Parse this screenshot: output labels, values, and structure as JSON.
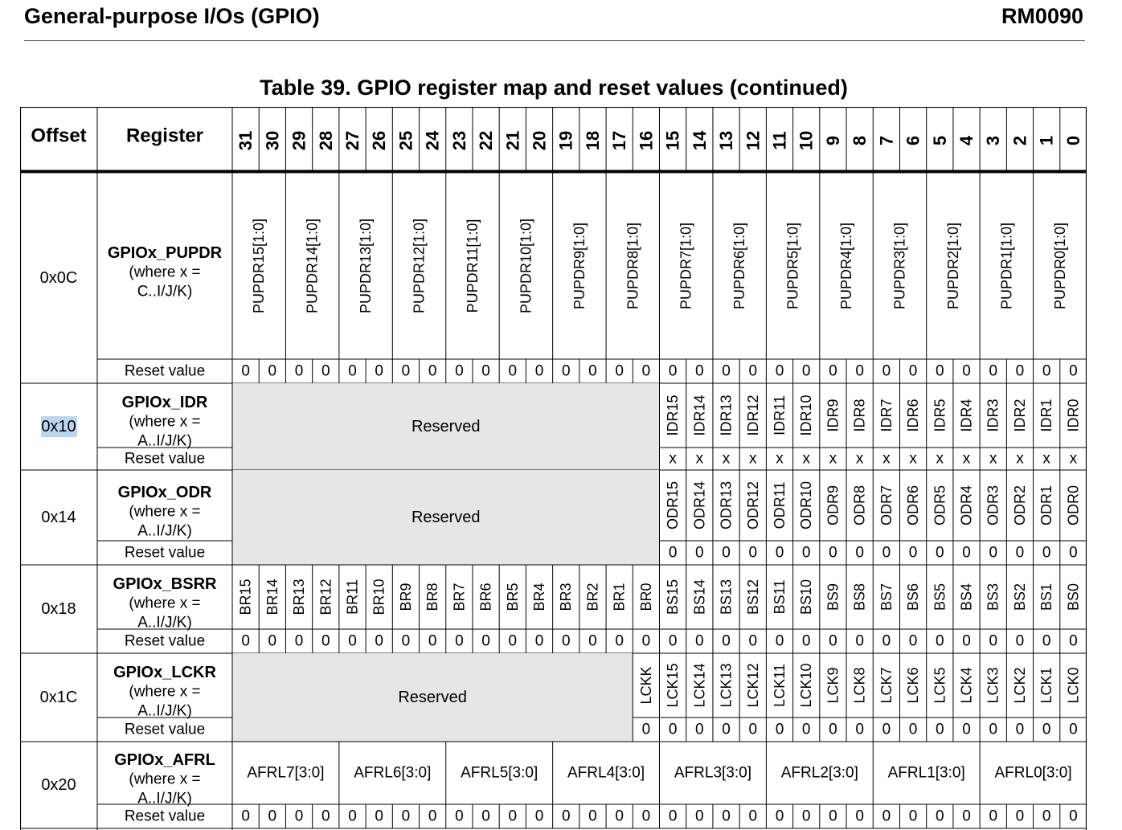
{
  "header": {
    "section_title": "General-purpose I/Os (GPIO)",
    "doc_id": "RM0090"
  },
  "caption": "Table 39. GPIO register map and reset values (continued)",
  "table": {
    "col_offset": "Offset",
    "col_register": "Register",
    "bit_numbers": [
      "31",
      "30",
      "29",
      "28",
      "27",
      "26",
      "25",
      "24",
      "23",
      "22",
      "21",
      "20",
      "19",
      "18",
      "17",
      "16",
      "15",
      "14",
      "13",
      "12",
      "11",
      "10",
      "9",
      "8",
      "7",
      "6",
      "5",
      "4",
      "3",
      "2",
      "1",
      "0"
    ],
    "reset_label": "Reset value",
    "reserved_label": "Reserved",
    "rows": [
      {
        "offset": "0x0C",
        "offset_selected": false,
        "reg_name": "GPIOx_PUPDR",
        "reg_where": [
          "(where x =",
          "C..I/J/K)"
        ],
        "fields": [
          {
            "label": "PUPDR15[1:0]",
            "width": 2,
            "vertical": true
          },
          {
            "label": "PUPDR14[1:0]",
            "width": 2,
            "vertical": true
          },
          {
            "label": "PUPDR13[1:0]",
            "width": 2,
            "vertical": true
          },
          {
            "label": "PUPDR12[1:0]",
            "width": 2,
            "vertical": true
          },
          {
            "label": "PUPDR11[1:0]",
            "width": 2,
            "vertical": true
          },
          {
            "label": "PUPDR10[1:0]",
            "width": 2,
            "vertical": true
          },
          {
            "label": "PUPDR9[1:0]",
            "width": 2,
            "vertical": true
          },
          {
            "label": "PUPDR8[1:0]",
            "width": 2,
            "vertical": true
          },
          {
            "label": "PUPDR7[1:0]",
            "width": 2,
            "vertical": true
          },
          {
            "label": "PUPDR6[1:0]",
            "width": 2,
            "vertical": true
          },
          {
            "label": "PUPDR5[1:0]",
            "width": 2,
            "vertical": true
          },
          {
            "label": "PUPDR4[1:0]",
            "width": 2,
            "vertical": true
          },
          {
            "label": "PUPDR3[1:0]",
            "width": 2,
            "vertical": true
          },
          {
            "label": "PUPDR2[1:0]",
            "width": 2,
            "vertical": true
          },
          {
            "label": "PUPDR1[1:0]",
            "width": 2,
            "vertical": true
          },
          {
            "label": "PUPDR0[1:0]",
            "width": 2,
            "vertical": true
          }
        ],
        "reset": [
          "0",
          "0",
          "0",
          "0",
          "0",
          "0",
          "0",
          "0",
          "0",
          "0",
          "0",
          "0",
          "0",
          "0",
          "0",
          "0",
          "0",
          "0",
          "0",
          "0",
          "0",
          "0",
          "0",
          "0",
          "0",
          "0",
          "0",
          "0",
          "0",
          "0",
          "0",
          "0"
        ]
      },
      {
        "offset": "0x10",
        "offset_selected": true,
        "reg_name": "GPIOx_IDR",
        "reg_where": [
          "(where x =",
          "A..I/J/K)"
        ],
        "fields": [
          {
            "label": "Reserved",
            "width": 16,
            "reserved": true
          },
          {
            "label": "IDR15",
            "width": 1,
            "vertical": true
          },
          {
            "label": "IDR14",
            "width": 1,
            "vertical": true
          },
          {
            "label": "IDR13",
            "width": 1,
            "vertical": true
          },
          {
            "label": "IDR12",
            "width": 1,
            "vertical": true
          },
          {
            "label": "IDR11",
            "width": 1,
            "vertical": true
          },
          {
            "label": "IDR10",
            "width": 1,
            "vertical": true
          },
          {
            "label": "IDR9",
            "width": 1,
            "vertical": true
          },
          {
            "label": "IDR8",
            "width": 1,
            "vertical": true
          },
          {
            "label": "IDR7",
            "width": 1,
            "vertical": true
          },
          {
            "label": "IDR6",
            "width": 1,
            "vertical": true
          },
          {
            "label": "IDR5",
            "width": 1,
            "vertical": true
          },
          {
            "label": "IDR4",
            "width": 1,
            "vertical": true
          },
          {
            "label": "IDR3",
            "width": 1,
            "vertical": true
          },
          {
            "label": "IDR2",
            "width": 1,
            "vertical": true
          },
          {
            "label": "IDR1",
            "width": 1,
            "vertical": true
          },
          {
            "label": "IDR0",
            "width": 1,
            "vertical": true
          }
        ],
        "reset": [
          "",
          "",
          "",
          "",
          "",
          "",
          "",
          "",
          "",
          "",
          "",
          "",
          "",
          "",
          "",
          "",
          "x",
          "x",
          "x",
          "x",
          "x",
          "x",
          "x",
          "x",
          "x",
          "x",
          "x",
          "x",
          "x",
          "x",
          "x",
          "x"
        ]
      },
      {
        "offset": "0x14",
        "offset_selected": false,
        "reg_name": "GPIOx_ODR",
        "reg_where": [
          "(where x =",
          "A..I/J/K)"
        ],
        "fields": [
          {
            "label": "Reserved",
            "width": 16,
            "reserved": true
          },
          {
            "label": "ODR15",
            "width": 1,
            "vertical": true
          },
          {
            "label": "ODR14",
            "width": 1,
            "vertical": true
          },
          {
            "label": "ODR13",
            "width": 1,
            "vertical": true
          },
          {
            "label": "ODR12",
            "width": 1,
            "vertical": true
          },
          {
            "label": "ODR11",
            "width": 1,
            "vertical": true
          },
          {
            "label": "ODR10",
            "width": 1,
            "vertical": true
          },
          {
            "label": "ODR9",
            "width": 1,
            "vertical": true
          },
          {
            "label": "ODR8",
            "width": 1,
            "vertical": true
          },
          {
            "label": "ODR7",
            "width": 1,
            "vertical": true
          },
          {
            "label": "ODR6",
            "width": 1,
            "vertical": true
          },
          {
            "label": "ODR5",
            "width": 1,
            "vertical": true
          },
          {
            "label": "ODR4",
            "width": 1,
            "vertical": true
          },
          {
            "label": "ODR3",
            "width": 1,
            "vertical": true
          },
          {
            "label": "ODR2",
            "width": 1,
            "vertical": true
          },
          {
            "label": "ODR1",
            "width": 1,
            "vertical": true
          },
          {
            "label": "ODR0",
            "width": 1,
            "vertical": true
          }
        ],
        "reset": [
          "",
          "",
          "",
          "",
          "",
          "",
          "",
          "",
          "",
          "",
          "",
          "",
          "",
          "",
          "",
          "",
          "0",
          "0",
          "0",
          "0",
          "0",
          "0",
          "0",
          "0",
          "0",
          "0",
          "0",
          "0",
          "0",
          "0",
          "0",
          "0"
        ]
      },
      {
        "offset": "0x18",
        "offset_selected": false,
        "reg_name": "GPIOx_BSRR",
        "reg_where": [
          "(where x =",
          "A..I/J/K)"
        ],
        "fields": [
          {
            "label": "BR15",
            "width": 1,
            "vertical": true
          },
          {
            "label": "BR14",
            "width": 1,
            "vertical": true
          },
          {
            "label": "BR13",
            "width": 1,
            "vertical": true
          },
          {
            "label": "BR12",
            "width": 1,
            "vertical": true
          },
          {
            "label": "BR11",
            "width": 1,
            "vertical": true
          },
          {
            "label": "BR10",
            "width": 1,
            "vertical": true
          },
          {
            "label": "BR9",
            "width": 1,
            "vertical": true
          },
          {
            "label": "BR8",
            "width": 1,
            "vertical": true
          },
          {
            "label": "BR7",
            "width": 1,
            "vertical": true
          },
          {
            "label": "BR6",
            "width": 1,
            "vertical": true
          },
          {
            "label": "BR5",
            "width": 1,
            "vertical": true
          },
          {
            "label": "BR4",
            "width": 1,
            "vertical": true
          },
          {
            "label": "BR3",
            "width": 1,
            "vertical": true
          },
          {
            "label": "BR2",
            "width": 1,
            "vertical": true
          },
          {
            "label": "BR1",
            "width": 1,
            "vertical": true
          },
          {
            "label": "BR0",
            "width": 1,
            "vertical": true
          },
          {
            "label": "BS15",
            "width": 1,
            "vertical": true
          },
          {
            "label": "BS14",
            "width": 1,
            "vertical": true
          },
          {
            "label": "BS13",
            "width": 1,
            "vertical": true
          },
          {
            "label": "BS12",
            "width": 1,
            "vertical": true
          },
          {
            "label": "BS11",
            "width": 1,
            "vertical": true
          },
          {
            "label": "BS10",
            "width": 1,
            "vertical": true
          },
          {
            "label": "BS9",
            "width": 1,
            "vertical": true
          },
          {
            "label": "BS8",
            "width": 1,
            "vertical": true
          },
          {
            "label": "BS7",
            "width": 1,
            "vertical": true
          },
          {
            "label": "BS6",
            "width": 1,
            "vertical": true
          },
          {
            "label": "BS5",
            "width": 1,
            "vertical": true
          },
          {
            "label": "BS4",
            "width": 1,
            "vertical": true
          },
          {
            "label": "BS3",
            "width": 1,
            "vertical": true
          },
          {
            "label": "BS2",
            "width": 1,
            "vertical": true
          },
          {
            "label": "BS1",
            "width": 1,
            "vertical": true
          },
          {
            "label": "BS0",
            "width": 1,
            "vertical": true
          }
        ],
        "reset": [
          "0",
          "0",
          "0",
          "0",
          "0",
          "0",
          "0",
          "0",
          "0",
          "0",
          "0",
          "0",
          "0",
          "0",
          "0",
          "0",
          "0",
          "0",
          "0",
          "0",
          "0",
          "0",
          "0",
          "0",
          "0",
          "0",
          "0",
          "0",
          "0",
          "0",
          "0",
          "0"
        ]
      },
      {
        "offset": "0x1C",
        "offset_selected": false,
        "reg_name": "GPIOx_LCKR",
        "reg_where": [
          "(where x =",
          "A..I/J/K)"
        ],
        "fields": [
          {
            "label": "Reserved",
            "width": 15,
            "reserved": true
          },
          {
            "label": "LCKK",
            "width": 1,
            "vertical": true
          },
          {
            "label": "LCK15",
            "width": 1,
            "vertical": true
          },
          {
            "label": "LCK14",
            "width": 1,
            "vertical": true
          },
          {
            "label": "LCK13",
            "width": 1,
            "vertical": true
          },
          {
            "label": "LCK12",
            "width": 1,
            "vertical": true
          },
          {
            "label": "LCK11",
            "width": 1,
            "vertical": true
          },
          {
            "label": "LCK10",
            "width": 1,
            "vertical": true
          },
          {
            "label": "LCK9",
            "width": 1,
            "vertical": true
          },
          {
            "label": "LCK8",
            "width": 1,
            "vertical": true
          },
          {
            "label": "LCK7",
            "width": 1,
            "vertical": true
          },
          {
            "label": "LCK6",
            "width": 1,
            "vertical": true
          },
          {
            "label": "LCK5",
            "width": 1,
            "vertical": true
          },
          {
            "label": "LCK4",
            "width": 1,
            "vertical": true
          },
          {
            "label": "LCK3",
            "width": 1,
            "vertical": true
          },
          {
            "label": "LCK2",
            "width": 1,
            "vertical": true
          },
          {
            "label": "LCK1",
            "width": 1,
            "vertical": true
          },
          {
            "label": "LCK0",
            "width": 1,
            "vertical": true
          }
        ],
        "reset": [
          "",
          "",
          "",
          "",
          "",
          "",
          "",
          "",
          "",
          "",
          "",
          "",
          "",
          "",
          "",
          "0",
          "0",
          "0",
          "0",
          "0",
          "0",
          "0",
          "0",
          "0",
          "0",
          "0",
          "0",
          "0",
          "0",
          "0",
          "0",
          "0"
        ]
      },
      {
        "offset": "0x20",
        "offset_selected": false,
        "reg_name": "GPIOx_AFRL",
        "reg_where": [
          "(where x =",
          "A..I/J/K)"
        ],
        "fields": [
          {
            "label": "AFRL7[3:0]",
            "width": 4
          },
          {
            "label": "AFRL6[3:0]",
            "width": 4
          },
          {
            "label": "AFRL5[3:0]",
            "width": 4
          },
          {
            "label": "AFRL4[3:0]",
            "width": 4
          },
          {
            "label": "AFRL3[3:0]",
            "width": 4
          },
          {
            "label": "AFRL2[3:0]",
            "width": 4
          },
          {
            "label": "AFRL1[3:0]",
            "width": 4
          },
          {
            "label": "AFRL0[3:0]",
            "width": 4
          }
        ],
        "reset": [
          "0",
          "0",
          "0",
          "0",
          "0",
          "0",
          "0",
          "0",
          "0",
          "0",
          "0",
          "0",
          "0",
          "0",
          "0",
          "0",
          "0",
          "0",
          "0",
          "0",
          "0",
          "0",
          "0",
          "0",
          "0",
          "0",
          "0",
          "0",
          "0",
          "0",
          "0",
          "0"
        ]
      }
    ]
  }
}
